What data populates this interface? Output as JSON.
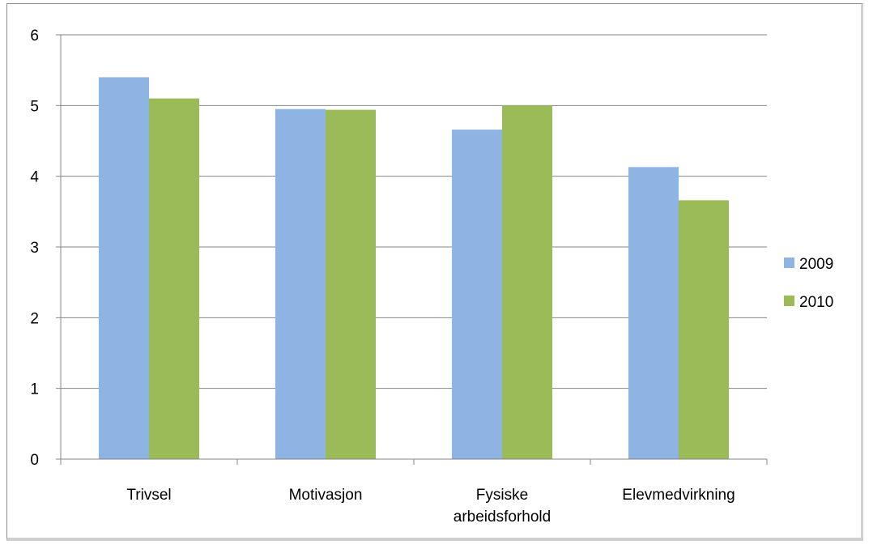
{
  "chart_data": {
    "type": "bar",
    "categories": [
      [
        "Trivsel"
      ],
      [
        "Motivasjon"
      ],
      [
        "Fysiske",
        "arbeidsforhold"
      ],
      [
        "Elevmedvirkning"
      ]
    ],
    "series": [
      {
        "name": "2009",
        "color": "#8eb4e3",
        "values": [
          5.4,
          4.95,
          4.66,
          4.13
        ]
      },
      {
        "name": "2010",
        "color": "#9bbb59",
        "values": [
          5.1,
          4.94,
          5.0,
          3.66
        ]
      }
    ],
    "yticks": [
      "0",
      "1",
      "2",
      "3",
      "4",
      "5",
      "6"
    ],
    "ylim": [
      0,
      6
    ],
    "grid": true,
    "legend": "right"
  }
}
